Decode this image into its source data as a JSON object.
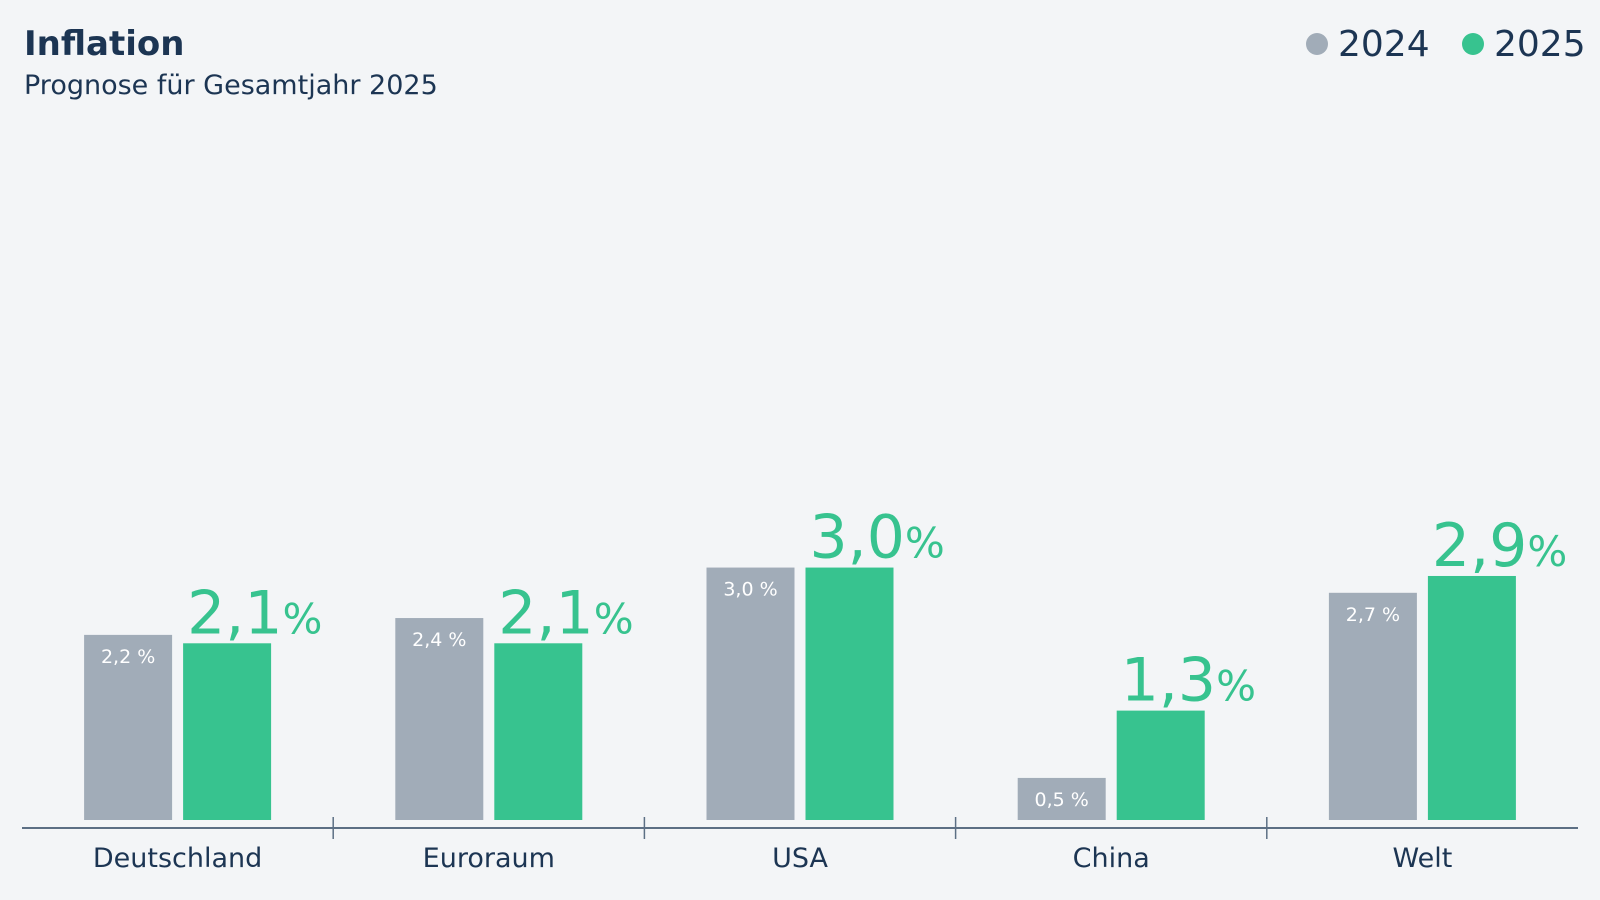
{
  "chart_data": {
    "type": "bar",
    "title": "Inflation",
    "subtitle": "Prognose für Gesamtjahr 2025",
    "categories": [
      "Deutschland",
      "Euroraum",
      "USA",
      "China",
      "Welt"
    ],
    "series": [
      {
        "name": "2024",
        "color": "#a1acb8",
        "values": [
          2.2,
          2.4,
          3.0,
          0.5,
          2.7
        ],
        "labels": [
          "2,2 %",
          "2,4 %",
          "3,0 %",
          "0,5 %",
          "2,7 %"
        ]
      },
      {
        "name": "2025",
        "color": "#37c38f",
        "values": [
          2.1,
          2.1,
          3.0,
          1.3,
          2.9
        ],
        "labels": [
          "2,1",
          "2,1",
          "3,0",
          "1,3",
          "2,9"
        ],
        "label_unit": "%"
      }
    ],
    "ylim": [
      0,
      8.2
    ],
    "grid": false,
    "legend": "top-right",
    "text_color": "#1c3553",
    "axis_color": "#5c6f84"
  }
}
